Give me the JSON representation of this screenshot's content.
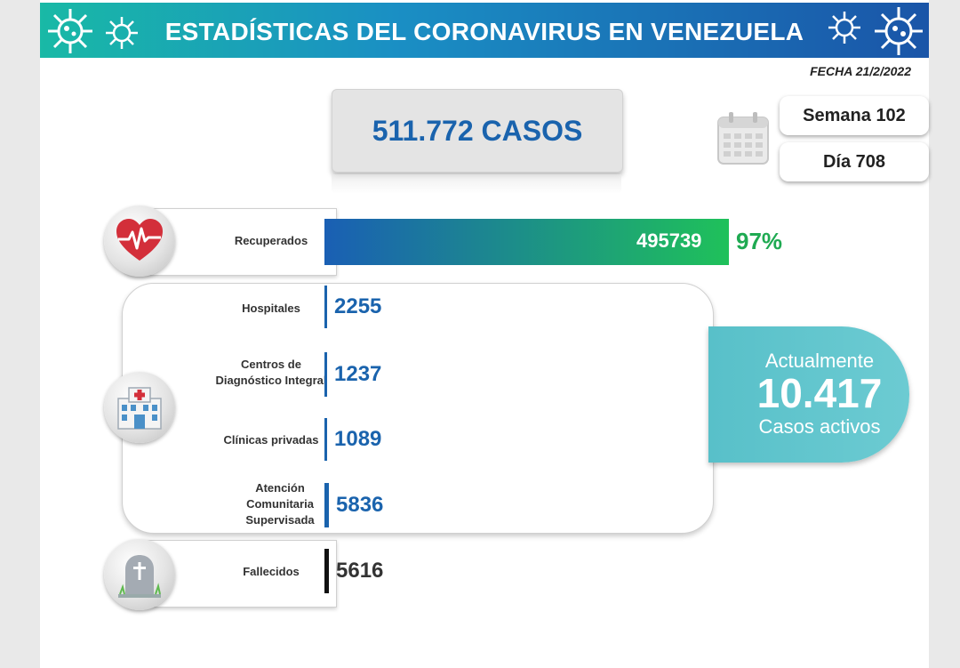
{
  "header": {
    "title": "ESTADÍSTICAS DEL CORONAVIRUS EN VENEZUELA"
  },
  "date": "FECHA 21/2/2022",
  "total_cases": "511.772 CASOS",
  "week": "Semana 102",
  "day": "Día 708",
  "active": {
    "top": "Actualmente",
    "number": "10.417",
    "bottom": "Casos activos"
  },
  "colors": {
    "recovered_start": "#1a5fb4",
    "recovered_end": "#1fc15a",
    "blue": "#1a63ad",
    "black": "#111111",
    "teal": "#5cc3cb"
  },
  "icons": [
    "heart-icon",
    "hospital-icon",
    "tombstone-icon",
    "calendar-icon",
    "virus-icon"
  ],
  "chart_data": {
    "type": "bar",
    "categories": [
      "Recuperados",
      "Hospitales",
      "Centros de Diagnóstico Integral",
      "Clínicas privadas",
      "Atención Comunitaria Supervisada",
      "Fallecidos"
    ],
    "values": [
      495739,
      2255,
      1237,
      1089,
      5836,
      5616
    ],
    "recovered_percent": "97%",
    "title": "",
    "xlabel": "",
    "ylabel": ""
  },
  "rows": {
    "recovered": {
      "label": "Recuperados",
      "value": "495739",
      "percent": "97%"
    },
    "hospitals": {
      "label": "Hospitales",
      "value": "2255"
    },
    "cdi": {
      "label": "Centros de Diagnóstico Integral",
      "value": "1237"
    },
    "clinics": {
      "label": "Clínicas privadas",
      "value": "1089"
    },
    "community": {
      "label": "Atención Comunitaria Supervisada",
      "value": "5836"
    },
    "deaths": {
      "label": "Fallecidos",
      "value": "5616"
    }
  }
}
